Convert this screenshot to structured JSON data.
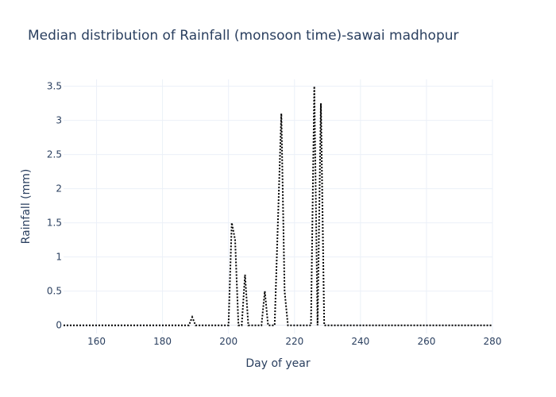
{
  "chart_data": {
    "type": "line",
    "title": "Median distribution of Rainfall (monsoon time)-sawai madhopur",
    "xlabel": "Day of year",
    "ylabel": "Rainfall (mm)",
    "xlim": [
      150,
      280
    ],
    "ylim": [
      -0.12,
      3.6
    ],
    "x_ticks": [
      160,
      180,
      200,
      220,
      240,
      260,
      280
    ],
    "x_tick_labels": [
      "160",
      "180",
      "200",
      "220",
      "240",
      "260",
      "280"
    ],
    "y_ticks": [
      0,
      0.5,
      1,
      1.5,
      2,
      2.5,
      3,
      3.5
    ],
    "y_tick_labels": [
      "0",
      "0.5",
      "1",
      "1.5",
      "2",
      "2.5",
      "3",
      "3.5"
    ],
    "grid": true,
    "series": [
      {
        "color": "#000000",
        "dash": "dot",
        "x": [
          150,
          151,
          152,
          153,
          154,
          155,
          156,
          157,
          158,
          159,
          160,
          161,
          162,
          163,
          164,
          165,
          166,
          167,
          168,
          169,
          170,
          171,
          172,
          173,
          174,
          175,
          176,
          177,
          178,
          179,
          180,
          181,
          182,
          183,
          184,
          185,
          186,
          187,
          188,
          189,
          190,
          191,
          192,
          193,
          194,
          195,
          196,
          197,
          198,
          199,
          200,
          201,
          202,
          203,
          204,
          205,
          206,
          207,
          208,
          209,
          210,
          211,
          212,
          213,
          214,
          215,
          216,
          217,
          218,
          219,
          220,
          221,
          222,
          223,
          224,
          225,
          226,
          227,
          228,
          229,
          230,
          231,
          232,
          233,
          234,
          235,
          236,
          237,
          238,
          239,
          240,
          241,
          242,
          243,
          244,
          245,
          246,
          247,
          248,
          249,
          250,
          251,
          252,
          253,
          254,
          255,
          256,
          257,
          258,
          259,
          260,
          261,
          262,
          263,
          264,
          265,
          266,
          267,
          268,
          269,
          270,
          271,
          272,
          273,
          274,
          275,
          276,
          277,
          278,
          279,
          280
        ],
        "values": [
          0,
          0,
          0,
          0,
          0,
          0,
          0,
          0,
          0,
          0,
          0,
          0,
          0,
          0,
          0,
          0,
          0,
          0,
          0,
          0,
          0,
          0,
          0,
          0,
          0,
          0,
          0,
          0,
          0,
          0,
          0,
          0,
          0,
          0,
          0,
          0,
          0,
          0,
          0,
          0.12,
          0,
          0,
          0,
          0,
          0,
          0,
          0,
          0,
          0,
          0,
          0,
          1.5,
          1.25,
          0,
          0,
          0.74,
          0,
          0,
          0,
          0,
          0,
          0.5,
          0,
          0,
          0,
          1.55,
          3.1,
          0.5,
          0,
          0,
          0,
          0,
          0,
          0,
          0,
          0,
          3.5,
          0,
          3.25,
          0,
          0,
          0,
          0,
          0,
          0,
          0,
          0,
          0,
          0,
          0,
          0,
          0,
          0,
          0,
          0,
          0,
          0,
          0,
          0,
          0,
          0,
          0,
          0,
          0,
          0,
          0,
          0,
          0,
          0,
          0,
          0,
          0,
          0,
          0,
          0,
          0,
          0,
          0,
          0,
          0,
          0,
          0,
          0,
          0,
          0,
          0,
          0,
          0,
          0,
          0,
          0
        ]
      }
    ]
  }
}
